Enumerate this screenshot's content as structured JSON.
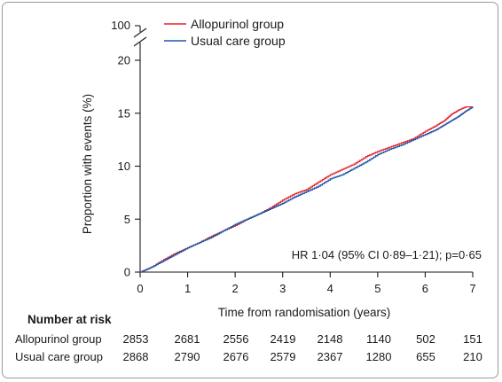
{
  "chart_data": {
    "type": "line",
    "title": "",
    "xlabel": "Time from randomisation (years)",
    "ylabel": "Proportion with events (%)",
    "xlim": [
      0,
      7
    ],
    "ylim": [
      0,
      20
    ],
    "x_ticks": [
      "0",
      "1",
      "2",
      "3",
      "4",
      "5",
      "6",
      "7"
    ],
    "y_ticks": [
      "0",
      "5",
      "10",
      "15",
      "20"
    ],
    "y_break_label": "100",
    "grid": false,
    "legend_position": "top-left",
    "series": [
      {
        "name": "Allopurinol group",
        "color": "#e3242b",
        "x": [
          0,
          0.25,
          0.5,
          0.75,
          1.0,
          1.25,
          1.5,
          1.75,
          2.0,
          2.25,
          2.5,
          2.75,
          3.0,
          3.25,
          3.5,
          3.75,
          4.0,
          4.25,
          4.5,
          4.75,
          5.0,
          5.25,
          5.5,
          5.75,
          6.0,
          6.25,
          6.4,
          6.55,
          6.7,
          6.85,
          7.0
        ],
        "y": [
          0,
          0.5,
          1.2,
          1.8,
          2.3,
          2.8,
          3.4,
          3.9,
          4.4,
          5.0,
          5.5,
          6.1,
          6.8,
          7.4,
          7.8,
          8.5,
          9.2,
          9.7,
          10.2,
          10.9,
          11.4,
          11.8,
          12.2,
          12.6,
          13.3,
          13.9,
          14.3,
          14.9,
          15.3,
          15.6,
          15.6
        ]
      },
      {
        "name": "Usual care group",
        "color": "#1f56a8",
        "x": [
          0,
          0.25,
          0.5,
          0.75,
          1.0,
          1.25,
          1.5,
          1.75,
          2.0,
          2.25,
          2.5,
          2.75,
          3.0,
          3.25,
          3.5,
          3.75,
          4.0,
          4.25,
          4.5,
          4.75,
          5.0,
          5.25,
          5.5,
          5.75,
          6.0,
          6.25,
          6.4,
          6.55,
          6.7,
          6.85,
          7.0
        ],
        "y": [
          0,
          0.5,
          1.1,
          1.7,
          2.3,
          2.8,
          3.3,
          3.9,
          4.5,
          5.0,
          5.5,
          6.0,
          6.5,
          7.1,
          7.6,
          8.1,
          8.8,
          9.2,
          9.8,
          10.4,
          11.1,
          11.6,
          12.0,
          12.5,
          13.0,
          13.5,
          13.9,
          14.3,
          14.7,
          15.2,
          15.6
        ]
      }
    ],
    "annotation": "HR 1·04 (95% CI 0·89–1·21); p=0·65",
    "risk_table": {
      "title": "Number at risk",
      "rows": [
        {
          "label": "Allopurinol group",
          "values": [
            "2853",
            "2681",
            "2556",
            "2419",
            "2148",
            "1140",
            "502",
            "151"
          ]
        },
        {
          "label": "Usual care group",
          "values": [
            "2868",
            "2790",
            "2676",
            "2579",
            "2367",
            "1280",
            "655",
            "210"
          ]
        }
      ]
    }
  }
}
